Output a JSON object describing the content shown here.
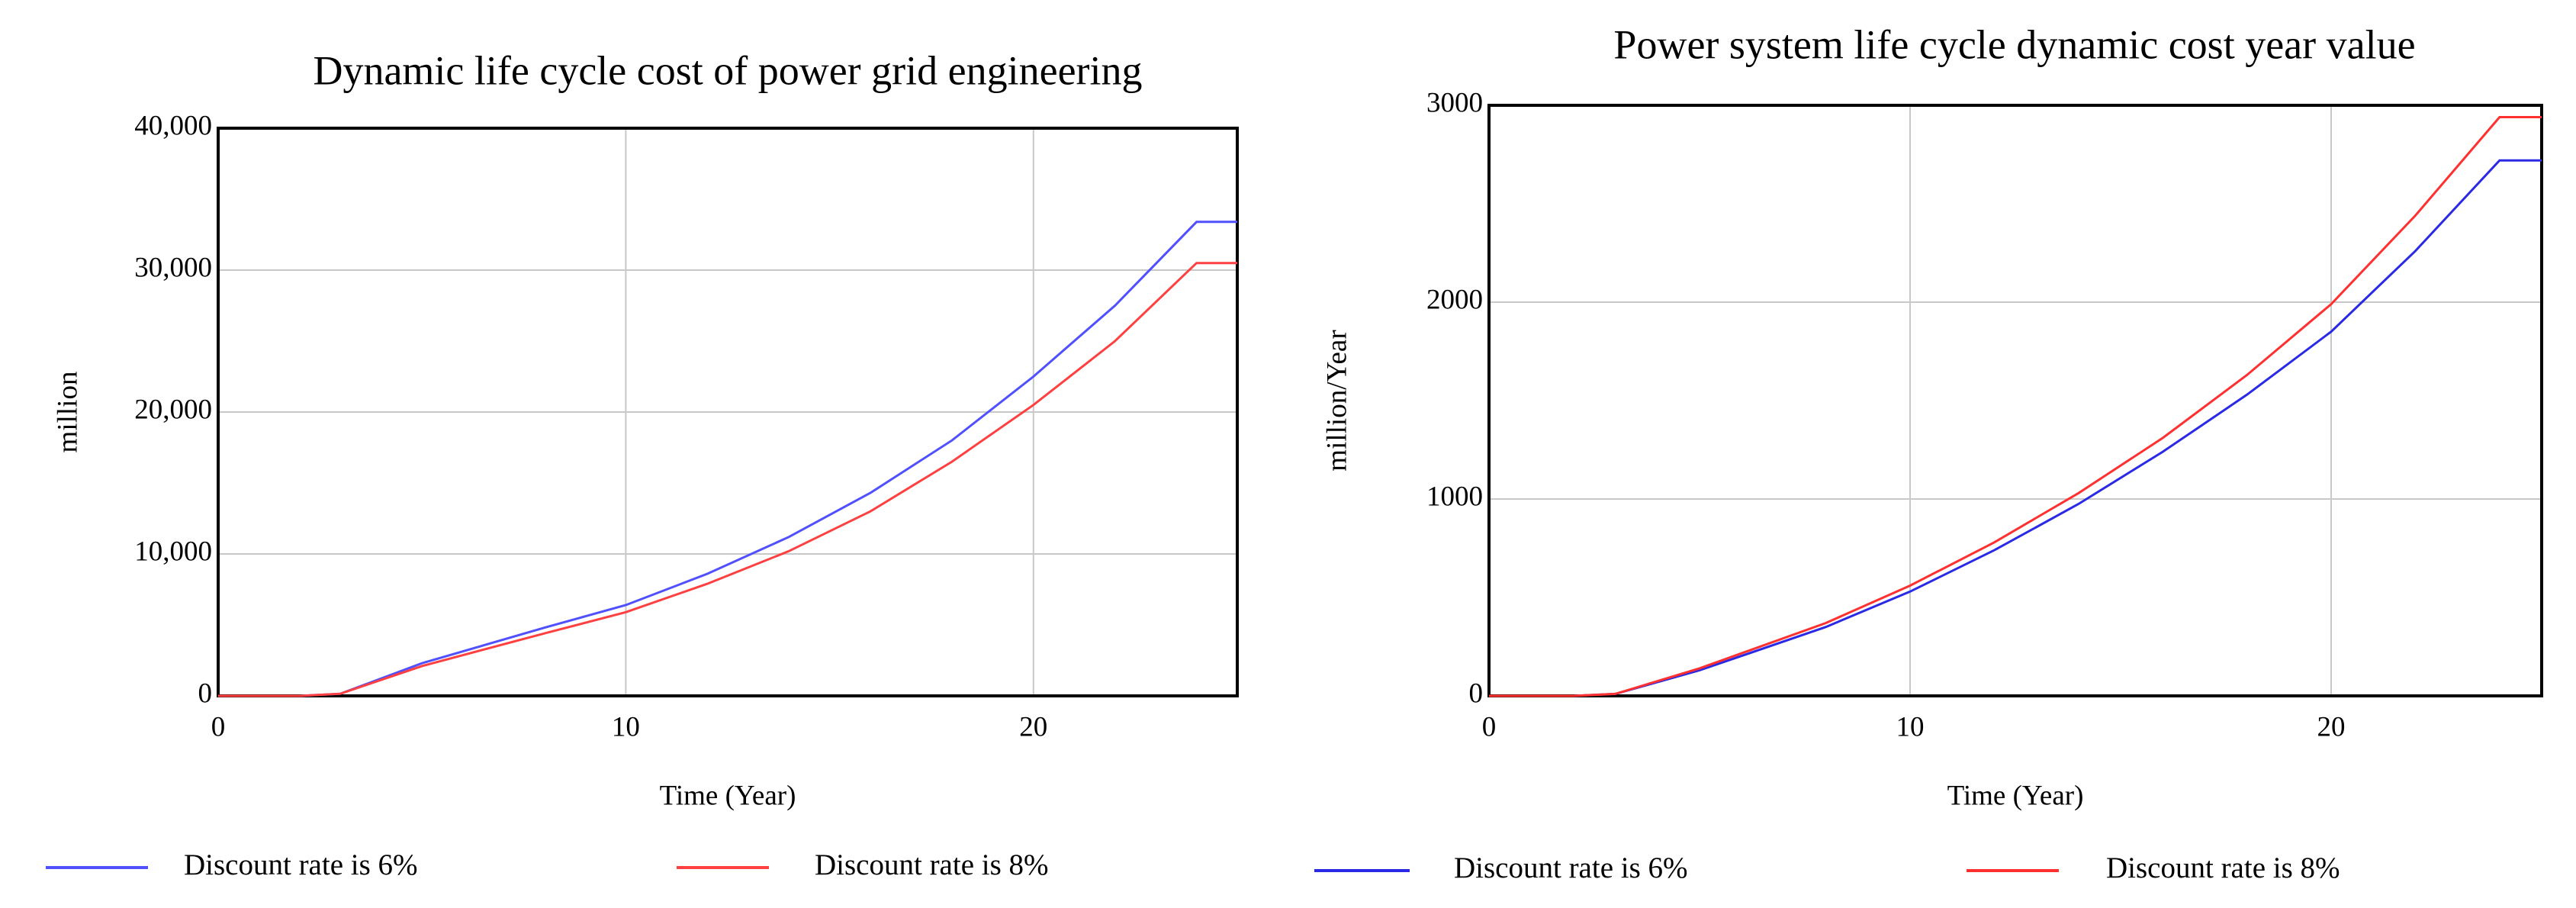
{
  "chart_data": [
    {
      "type": "line",
      "title": "Dynamic life cycle cost of power grid engineering",
      "x_label": "Time (Year)",
      "y_label": "million",
      "x": [
        0,
        2,
        3,
        5,
        8,
        10,
        12,
        14,
        16,
        18,
        20,
        22,
        24,
        25
      ],
      "xlim": [
        0,
        25
      ],
      "xticks": [
        0,
        10,
        20
      ],
      "ylim": [
        0,
        40000
      ],
      "yticks": [
        0,
        {
          "value": 10000,
          "label": "10,000"
        },
        {
          "value": 20000,
          "label": "20,000"
        },
        {
          "value": 30000,
          "label": "30,000"
        },
        {
          "value": 40000,
          "label": "40,000"
        }
      ],
      "grid": true,
      "series": [
        {
          "name": "Discount rate is 6%",
          "color": "#5050ff",
          "values": [
            0,
            0,
            150,
            2300,
            4800,
            6400,
            8600,
            11200,
            14300,
            18000,
            22500,
            27500,
            33400,
            33400
          ]
        },
        {
          "name": "Discount rate is 8%",
          "color": "#ff4040",
          "values": [
            0,
            0,
            150,
            2100,
            4400,
            5900,
            7900,
            10200,
            13000,
            16500,
            20500,
            25000,
            30500,
            30500
          ]
        }
      ]
    },
    {
      "type": "line",
      "title": "Power system life cycle dynamic cost year value",
      "x_label": "Time (Year)",
      "y_label": "million/Year",
      "x": [
        0,
        2,
        3,
        5,
        8,
        10,
        12,
        14,
        16,
        18,
        20,
        22,
        24,
        25
      ],
      "xlim": [
        0,
        25
      ],
      "xticks": [
        0,
        10,
        20
      ],
      "ylim": [
        0,
        3000
      ],
      "yticks": [
        0,
        1000,
        2000,
        3000
      ],
      "grid": true,
      "series": [
        {
          "name": "Discount rate is 6%",
          "color": "#2a2ae6",
          "values": [
            0,
            0,
            10,
            130,
            350,
            530,
            740,
            975,
            1240,
            1530,
            1850,
            2260,
            2720,
            2720
          ]
        },
        {
          "name": "Discount rate is 8%",
          "color": "#ff3030",
          "values": [
            0,
            0,
            10,
            140,
            370,
            560,
            780,
            1030,
            1310,
            1630,
            1990,
            2440,
            2940,
            2940
          ]
        }
      ]
    }
  ]
}
